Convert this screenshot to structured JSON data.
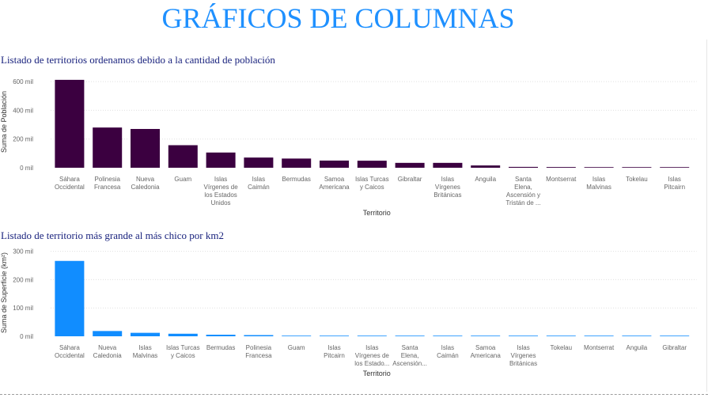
{
  "page": {
    "title": "GRÁFICOS DE COLUMNAS"
  },
  "chart_data": [
    {
      "type": "bar",
      "title": "Listado de territorios ordenamos debido a la cantidad de población",
      "xlabel": "Territorio",
      "ylabel": "Suma de Población",
      "ylim": [
        0,
        650000
      ],
      "yticks": [
        0,
        200000,
        400000,
        600000
      ],
      "ytick_labels": [
        "0 mil",
        "200 mil",
        "400 mil",
        "600 mil"
      ],
      "grid": true,
      "color": "#3b0040",
      "categories": [
        [
          "Sáhara",
          "Occidental"
        ],
        [
          "Polinesia",
          "Francesa"
        ],
        [
          "Nueva",
          "Caledonia"
        ],
        [
          "Guam"
        ],
        [
          "Islas",
          "Vírgenes de",
          "los Estados",
          "Unidos"
        ],
        [
          "Islas",
          "Caimán"
        ],
        [
          "Bermudas"
        ],
        [
          "Samoa",
          "Americana"
        ],
        [
          "Islas Turcas",
          "y Caicos"
        ],
        [
          "Gibraltar"
        ],
        [
          "Islas",
          "Vírgenes",
          "Británicas"
        ],
        [
          "Anguila"
        ],
        [
          "Santa",
          "Elena,",
          "Ascensión y",
          "Tristán de ..."
        ],
        [
          "Montserrat"
        ],
        [
          "Islas",
          "Malvinas"
        ],
        [
          "Tokelau"
        ],
        [
          "Islas",
          "Pitcairn"
        ]
      ],
      "values": [
        612000,
        280000,
        270000,
        157000,
        106000,
        71000,
        64000,
        50000,
        49000,
        34000,
        34000,
        16000,
        6000,
        5000,
        3000,
        1500,
        50
      ]
    },
    {
      "type": "bar",
      "title": "Listado de territorio más grande al más chico por km2",
      "xlabel": "Territorio",
      "ylabel": "Suma de Superficie (km²)",
      "ylim": [
        0,
        310000
      ],
      "yticks": [
        0,
        100000,
        200000,
        300000
      ],
      "ytick_labels": [
        "0 mil",
        "100 mil",
        "200 mil",
        "300 mil"
      ],
      "grid": true,
      "color": "#118dff",
      "categories": [
        [
          "Sáhara",
          "Occidental"
        ],
        [
          "Nueva",
          "Caledonia"
        ],
        [
          "Islas",
          "Malvinas"
        ],
        [
          "Islas Turcas",
          "y Caicos"
        ],
        [
          "Bermudas"
        ],
        [
          "Polinesia",
          "Francesa"
        ],
        [
          "Guam"
        ],
        [
          "Islas",
          "Pitcairn"
        ],
        [
          "Islas",
          "Vírgenes de",
          "los Estado..."
        ],
        [
          "Santa",
          "Elena,",
          "Ascensión..."
        ],
        [
          "Islas",
          "Caimán"
        ],
        [
          "Samoa",
          "Americana"
        ],
        [
          "Islas",
          "Vírgenes",
          "Británicas"
        ],
        [
          "Tokelau"
        ],
        [
          "Montserrat"
        ],
        [
          "Anguila"
        ],
        [
          "Gibraltar"
        ]
      ],
      "values": [
        266000,
        18600,
        12200,
        9000,
        5500,
        4200,
        541,
        47,
        347,
        394,
        264,
        199,
        151,
        10,
        102,
        91,
        7
      ]
    }
  ]
}
